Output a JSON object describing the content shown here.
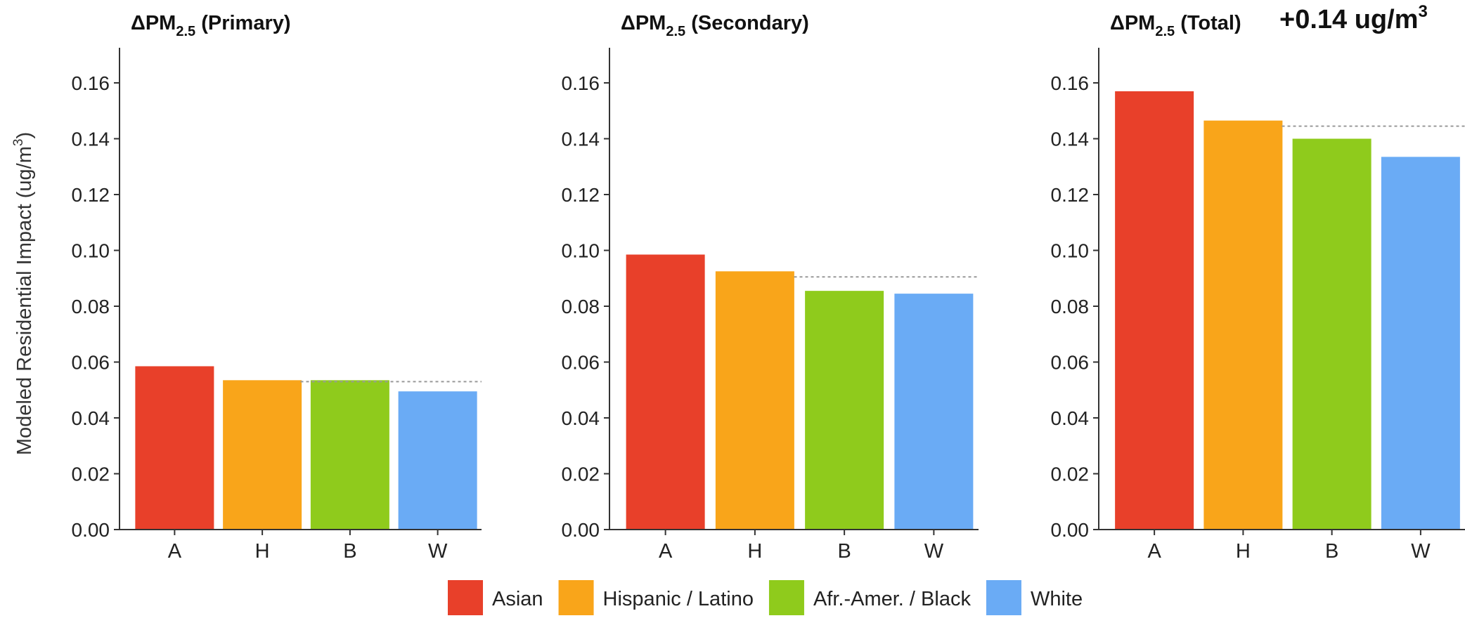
{
  "annotation": "+0.14 ug/m",
  "annotation_sup": "3",
  "ylabel_main": "Modeled Residential Impact (ug/m",
  "ylabel_sup": "3",
  "ylabel_end": ")",
  "colors": {
    "A": "#E8402A",
    "H": "#F9A51A",
    "B": "#8FCB1C",
    "W": "#6AABF5",
    "reference_line": "#999999",
    "axis": "#333333"
  },
  "legend": [
    {
      "key": "A",
      "label": "Asian"
    },
    {
      "key": "H",
      "label": "Hispanic / Latino"
    },
    {
      "key": "B",
      "label": "Afr.-Amer. / Black"
    },
    {
      "key": "W",
      "label": "White"
    }
  ],
  "chart_data": [
    {
      "type": "bar",
      "title_prefix": "ΔPM",
      "title_sub": "2.5",
      "title_suffix": " (Primary)",
      "categories": [
        "A",
        "H",
        "B",
        "W"
      ],
      "values": [
        0.0585,
        0.0535,
        0.0535,
        0.0495
      ],
      "reference": 0.053,
      "ylim": [
        0,
        0.17
      ],
      "yticks": [
        "0.00",
        "0.02",
        "0.04",
        "0.06",
        "0.08",
        "0.10",
        "0.12",
        "0.14",
        "0.16"
      ],
      "grid": false
    },
    {
      "type": "bar",
      "title_prefix": "ΔPM",
      "title_sub": "2.5",
      "title_suffix": " (Secondary)",
      "categories": [
        "A",
        "H",
        "B",
        "W"
      ],
      "values": [
        0.0985,
        0.0925,
        0.0855,
        0.0845
      ],
      "reference": 0.0905,
      "ylim": [
        0,
        0.17
      ],
      "yticks": [
        "0.00",
        "0.02",
        "0.04",
        "0.06",
        "0.08",
        "0.10",
        "0.12",
        "0.14",
        "0.16"
      ],
      "grid": false
    },
    {
      "type": "bar",
      "title_prefix": "ΔPM",
      "title_sub": "2.5",
      "title_suffix": " (Total)",
      "categories": [
        "A",
        "H",
        "B",
        "W"
      ],
      "values": [
        0.157,
        0.1465,
        0.14,
        0.1335
      ],
      "reference": 0.1445,
      "ylim": [
        0,
        0.17
      ],
      "yticks": [
        "0.00",
        "0.02",
        "0.04",
        "0.06",
        "0.08",
        "0.10",
        "0.12",
        "0.14",
        "0.16"
      ],
      "grid": false
    }
  ]
}
